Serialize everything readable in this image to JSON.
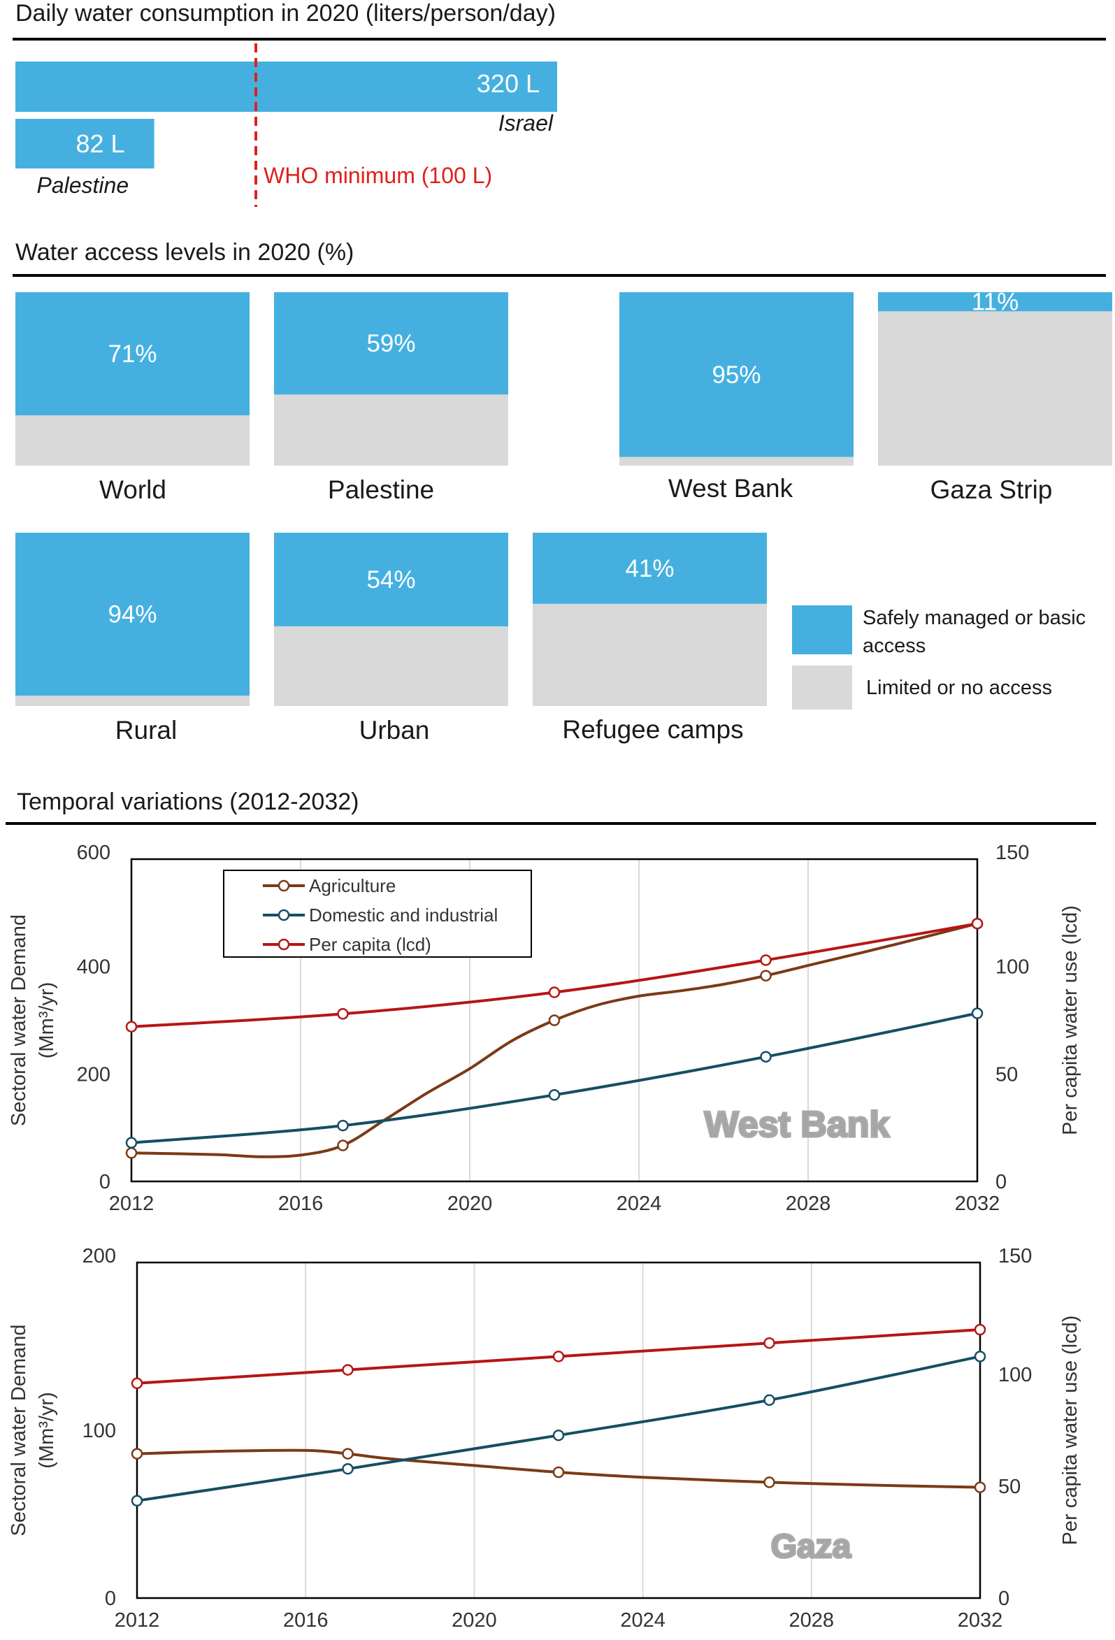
{
  "colors": {
    "accent": "#45b0e0",
    "limited": "#d9d9d9",
    "who_line": "#e0201b",
    "agriculture": "#7a3a16",
    "domestic": "#164e63",
    "per_capita": "#b71516",
    "grid": "#d9d9d9",
    "watermark": "#a6a6a6"
  },
  "consumption": {
    "title": "Daily water consumption in 2020 (liters/person/day)",
    "unit_suffix": " L",
    "who_value": 100,
    "who_label": "WHO minimum (100 L)",
    "bars": [
      {
        "name": "Israel",
        "value": 320
      },
      {
        "name": "Palestine",
        "value": 82
      }
    ]
  },
  "access": {
    "title": "Water access levels in 2020 (%)",
    "items": [
      {
        "label": "World",
        "value": 71
      },
      {
        "label": "Palestine",
        "value": 59
      },
      {
        "label": "West Bank",
        "value": 95
      },
      {
        "label": "Gaza Strip",
        "value": 11
      },
      {
        "label": "Rural",
        "value": 94
      },
      {
        "label": "Urban",
        "value": 54
      },
      {
        "label": "Refugee camps",
        "value": 41
      }
    ],
    "legend": {
      "safe_line1": "Safely managed or basic",
      "safe_line2": "access",
      "limited": "Limited or no access"
    }
  },
  "temporal": {
    "title": "Temporal variations (2012-2032)"
  },
  "chart_data": [
    {
      "type": "line",
      "title": "West Bank",
      "xlabel": "",
      "ylabel": "Sectoral water Demand (Mm³/yr)",
      "y2label": "Per capita water use (lcd)",
      "xlim": [
        2012,
        2032
      ],
      "ylim": [
        0,
        600
      ],
      "y2lim": [
        0,
        150
      ],
      "xticks": [
        2012,
        2016,
        2020,
        2024,
        2028,
        2032
      ],
      "yticks": [
        0,
        200,
        400,
        600
      ],
      "y2ticks": [
        0,
        50,
        100,
        150
      ],
      "legend": "top-left",
      "series": [
        {
          "name": "Agriculture",
          "axis": "left",
          "x": [
            2012,
            2017,
            2022,
            2027,
            2032
          ],
          "values": [
            53,
            67,
            300,
            383,
            480
          ],
          "path_x": [
            2012,
            2014,
            2015,
            2016,
            2017,
            2018,
            2019,
            2020,
            2021,
            2022,
            2023,
            2024,
            2025,
            2026,
            2027,
            2028,
            2030,
            2032
          ],
          "path_y": [
            53,
            50,
            46,
            49,
            67,
            115,
            165,
            210,
            262,
            300,
            328,
            345,
            355,
            367,
            383,
            402,
            440,
            480
          ]
        },
        {
          "name": "Domestic and industrial",
          "axis": "left",
          "x": [
            2012,
            2017,
            2022,
            2027,
            2032
          ],
          "values": [
            72,
            104,
            161,
            232,
            313
          ]
        },
        {
          "name": "Per capita (lcd)",
          "axis": "right",
          "x": [
            2012,
            2017,
            2022,
            2027,
            2032
          ],
          "values": [
            72,
            78,
            88,
            103,
            120
          ]
        }
      ]
    },
    {
      "type": "line",
      "title": "Gaza",
      "xlabel": "",
      "ylabel": "Sectoral water Demand (Mm³/yr)",
      "y2label": "Per capita water use (lcd)",
      "xlim": [
        2012,
        2032
      ],
      "ylim": [
        0,
        200
      ],
      "y2lim": [
        0,
        150
      ],
      "xticks": [
        2012,
        2016,
        2020,
        2024,
        2028,
        2032
      ],
      "yticks": [
        0,
        100,
        200
      ],
      "y2ticks": [
        0,
        50,
        100,
        150
      ],
      "series": [
        {
          "name": "Agriculture",
          "axis": "left",
          "x": [
            2012,
            2017,
            2022,
            2027,
            2032
          ],
          "values": [
            86,
            86,
            75,
            69,
            66
          ],
          "path_x": [
            2012,
            2014,
            2016,
            2017,
            2018,
            2020,
            2022,
            2024,
            2027,
            2030,
            2032
          ],
          "path_y": [
            86,
            87.5,
            88,
            86,
            83,
            79,
            75,
            72,
            69,
            67,
            66
          ]
        },
        {
          "name": "Domestic and industrial",
          "axis": "left",
          "x": [
            2012,
            2017,
            2022,
            2027,
            2032
          ],
          "values": [
            58,
            77,
            97,
            118,
            144
          ]
        },
        {
          "name": "Per capita (lcd)",
          "axis": "right",
          "x": [
            2012,
            2017,
            2022,
            2027,
            2032
          ],
          "values": [
            96,
            102,
            108,
            114,
            120
          ]
        }
      ]
    }
  ]
}
